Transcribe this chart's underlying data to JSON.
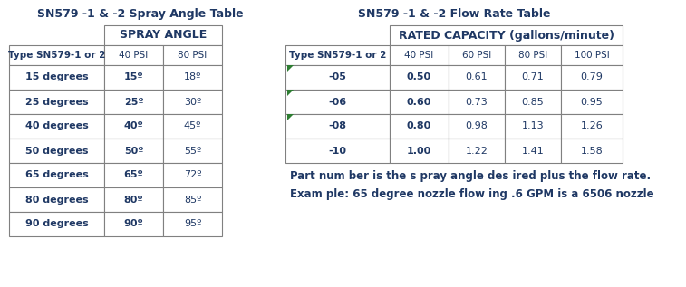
{
  "title_left": "SN579 -1 & -2 Spray Angle Table",
  "title_right": "SN579 -1 & -2 Flow Rate Table",
  "title_color": "#1F3864",
  "header_color": "#1F3864",
  "cell_text_color": "#1F3864",
  "background_color": "#ffffff",
  "table_line_color": "#808080",
  "spray_angle_header": "SPRAY ANGLE",
  "spray_col_headers": [
    "Type SN579-1 or 2",
    "40 PSI",
    "80 PSI"
  ],
  "spray_rows": [
    [
      "15 degrees",
      "15º",
      "18º"
    ],
    [
      "25 degrees",
      "25º",
      "30º"
    ],
    [
      "40 degrees",
      "40º",
      "45º"
    ],
    [
      "50 degrees",
      "50º",
      "55º"
    ],
    [
      "65 degrees",
      "65º",
      "72º"
    ],
    [
      "80 degrees",
      "80º",
      "85º"
    ],
    [
      "90 degrees",
      "90º",
      "95º"
    ]
  ],
  "flow_rate_header": "RATED CAPACITY (gallons/minute)",
  "flow_col_headers": [
    "Type SN579-1 or 2",
    "40 PSI",
    "60 PSI",
    "80 PSI",
    "100 PSI"
  ],
  "flow_rows": [
    [
      "-05",
      "0.50",
      "0.61",
      "0.71",
      "0.79"
    ],
    [
      "-06",
      "0.60",
      "0.73",
      "0.85",
      "0.95"
    ],
    [
      "-08",
      "0.80",
      "0.98",
      "1.13",
      "1.26"
    ],
    [
      "-10",
      "1.00",
      "1.22",
      "1.41",
      "1.58"
    ]
  ],
  "note1": "Part num ber is the s pray angle des ired plus the flow rate.",
  "note2": "Exam ple: 65 degree nozzle flow ing .6 GPM is a 6506 nozzle",
  "green_arrow_color": "#2E7D32"
}
